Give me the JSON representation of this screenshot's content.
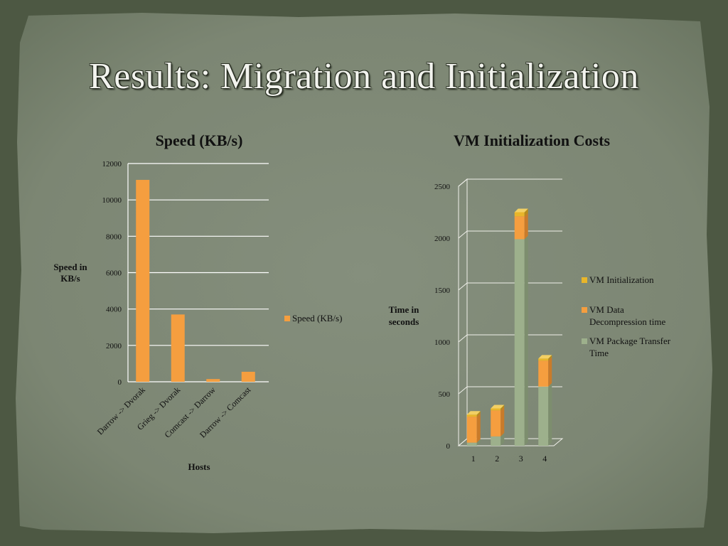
{
  "slide": {
    "title": "Results: Migration and Initialization"
  },
  "colors": {
    "background": "#7f8a77",
    "bar_orange": "#f59e3f",
    "bar_green": "#9db08c",
    "bar_yellow": "#e9b62a",
    "gridline": "#ffffff",
    "text": "#111111"
  },
  "chart_data": [
    {
      "type": "bar",
      "title": "Speed (KB/s)",
      "xlabel": "Hosts",
      "ylabel": "Speed in KB/s",
      "categories": [
        "Darrow -> Dvorak",
        "Grieg -> Dvorak",
        "Comcast -> Darrow",
        "Darrow -> Comcast"
      ],
      "series": [
        {
          "name": "Speed (KB/s)",
          "values": [
            11100,
            3700,
            150,
            550
          ]
        }
      ],
      "ylim": [
        0,
        12000
      ],
      "yticks": [
        0,
        2000,
        4000,
        6000,
        8000,
        10000,
        12000
      ],
      "grid": true,
      "legend": "right"
    },
    {
      "type": "bar",
      "stacked": true,
      "3d": true,
      "title": "VM Initialization Costs",
      "ylabel": "Time in seconds",
      "categories": [
        "1",
        "2",
        "3",
        "4"
      ],
      "series": [
        {
          "name": "VM Package Transfer Time",
          "values": [
            30,
            90,
            1990,
            570
          ]
        },
        {
          "name": "VM Data Decompression time",
          "values": [
            250,
            250,
            220,
            250
          ]
        },
        {
          "name": "VM Initialization",
          "values": [
            20,
            20,
            40,
            20
          ]
        }
      ],
      "ylim": [
        0,
        2500
      ],
      "yticks": [
        0,
        500,
        1000,
        1500,
        2000,
        2500
      ],
      "grid": true,
      "legend": "right"
    }
  ]
}
